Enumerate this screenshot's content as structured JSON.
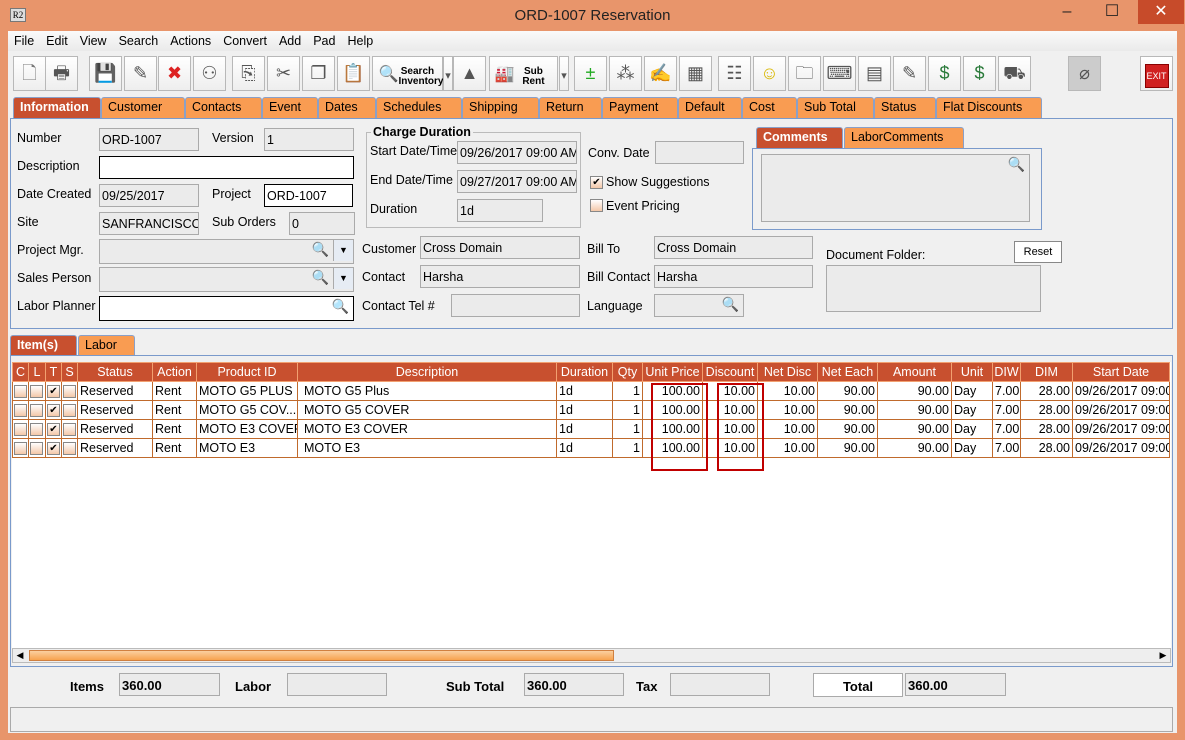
{
  "window": {
    "title": "ORD-1007 Reservation",
    "logo": "R2",
    "minimize": "–",
    "maximize": "☐",
    "close": "✕"
  },
  "menu": [
    "File",
    "Edit",
    "View",
    "Search",
    "Actions",
    "Convert",
    "Add",
    "Pad",
    "Help"
  ],
  "toolbar": {
    "search_inventory": "Search Inventory",
    "sub_rent": "Sub Rent",
    "exit": "EXIT",
    "icons": [
      "new-document-icon",
      "print-icon",
      "save-icon",
      "edit-pencil-icon",
      "delete-x-icon",
      "binoculars-icon",
      "copy-to-icon",
      "cut-icon",
      "copy-icon",
      "paste-icon",
      "search-inventory-icon",
      "dropdown-arrow-icon",
      "shapes-icon",
      "sub-rent-icon",
      "dropdown-arrow-icon",
      "add-remove-icon",
      "query-balls-icon",
      "notepad-icon",
      "calendar-disabled-icon",
      "hierarchy-icon",
      "smiley-icon",
      "folder-clock-icon",
      "key-icon",
      "stacked-boxes-icon",
      "edit-form-icon",
      "dollar-forward-icon",
      "dollar-notes-icon",
      "truck-icon",
      "disabled-plug-icon",
      "exit-icon"
    ]
  },
  "tabs": [
    "Information",
    "Customer",
    "Contacts",
    "Event",
    "Dates",
    "Schedules",
    "Shipping",
    "Return",
    "Payment",
    "Default",
    "Cost",
    "Sub Total",
    "Status",
    "Flat Discounts"
  ],
  "info": {
    "number_label": "Number",
    "number": "ORD-1007",
    "version_label": "Version",
    "version": "1",
    "description_label": "Description",
    "description": "",
    "date_created_label": "Date Created",
    "date_created": "09/25/2017",
    "project_label": "Project",
    "project": "ORD-1007",
    "site_label": "Site",
    "site": "SANFRANCISCO",
    "sub_orders_label": "Sub Orders",
    "sub_orders": "0",
    "project_mgr_label": "Project Mgr.",
    "sales_person_label": "Sales Person",
    "labor_planner_label": "Labor Planner",
    "charge_duration_title": "Charge Duration",
    "start_label": "Start Date/Time",
    "start": "09/26/2017 09:00 AM",
    "end_label": "End Date/Time",
    "end": "09/27/2017 09:00 AM",
    "duration_label": "Duration",
    "duration": "1d",
    "conv_date_label": "Conv. Date",
    "conv_date": "",
    "show_suggestions": "Show Suggestions",
    "show_suggestions_checked": true,
    "event_pricing": "Event Pricing",
    "event_pricing_checked": false,
    "customer_label": "Customer",
    "customer": "Cross Domain",
    "contact_label": "Contact",
    "contact": "Harsha",
    "contact_tel_label": "Contact Tel #",
    "bill_to_label": "Bill To",
    "bill_to": "Cross Domain",
    "bill_contact_label": "Bill Contact",
    "bill_contact": "Harsha",
    "language_label": "Language",
    "comments_tab": "Comments",
    "labor_comments_tab": "LaborComments",
    "document_folder_label": "Document Folder:",
    "reset": "Reset"
  },
  "item_tabs": [
    "Item(s)",
    "Labor"
  ],
  "table": {
    "columns": [
      "C",
      "L",
      "T",
      "S",
      "Status",
      "Action",
      "Product ID",
      "Description",
      "Duration",
      "Qty",
      "Unit Price",
      "Discount",
      "Net Disc",
      "Net Each",
      "Amount",
      "Unit",
      "DIW",
      "DIM",
      "Start Date"
    ],
    "rows": [
      {
        "C": false,
        "L": false,
        "T": true,
        "S": false,
        "status": "Reserved",
        "action": "Rent",
        "product_id": "MOTO G5 PLUS",
        "description": "MOTO G5 Plus",
        "duration": "1d",
        "qty": "1",
        "unit_price": "100.00",
        "discount": "10.00",
        "net_disc": "10.00",
        "net_each": "90.00",
        "amount": "90.00",
        "unit": "Day",
        "diw": "7.00",
        "dim": "28.00",
        "start_date": "09/26/2017 09:00"
      },
      {
        "C": false,
        "L": false,
        "T": true,
        "S": false,
        "status": "Reserved",
        "action": "Rent",
        "product_id": "MOTO G5 COV...",
        "description": "MOTO G5 COVER",
        "duration": "1d",
        "qty": "1",
        "unit_price": "100.00",
        "discount": "10.00",
        "net_disc": "10.00",
        "net_each": "90.00",
        "amount": "90.00",
        "unit": "Day",
        "diw": "7.00",
        "dim": "28.00",
        "start_date": "09/26/2017 09:00"
      },
      {
        "C": false,
        "L": false,
        "T": true,
        "S": false,
        "status": "Reserved",
        "action": "Rent",
        "product_id": "MOTO E3 COVER",
        "description": "MOTO E3 COVER",
        "duration": "1d",
        "qty": "1",
        "unit_price": "100.00",
        "discount": "10.00",
        "net_disc": "10.00",
        "net_each": "90.00",
        "amount": "90.00",
        "unit": "Day",
        "diw": "7.00",
        "dim": "28.00",
        "start_date": "09/26/2017 09:00"
      },
      {
        "C": false,
        "L": false,
        "T": true,
        "S": false,
        "status": "Reserved",
        "action": "Rent",
        "product_id": "MOTO E3",
        "description": "MOTO E3",
        "duration": "1d",
        "qty": "1",
        "unit_price": "100.00",
        "discount": "10.00",
        "net_disc": "10.00",
        "net_each": "90.00",
        "amount": "90.00",
        "unit": "Day",
        "diw": "7.00",
        "dim": "28.00",
        "start_date": "09/26/2017 09:00"
      }
    ]
  },
  "totals": {
    "items_label": "Items",
    "items": "360.00",
    "labor_label": "Labor",
    "labor": "",
    "sub_total_label": "Sub Total",
    "sub_total": "360.00",
    "tax_label": "Tax",
    "tax": "",
    "total_label": "Total",
    "total": "360.00"
  },
  "colors": {
    "frame": "#E8956B",
    "header": "#C8502F",
    "tab": "#F99C52",
    "highlight": "#C00000"
  }
}
